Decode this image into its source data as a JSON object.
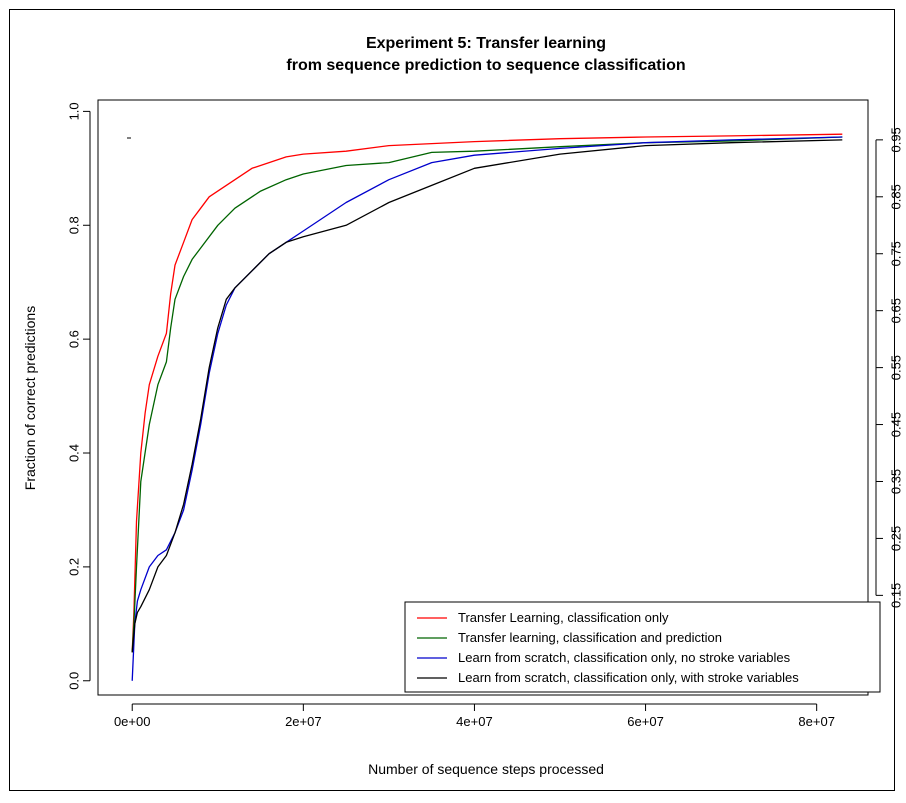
{
  "chart_data": {
    "type": "line",
    "title": "Experiment 5: Transfer learning",
    "subtitle": "from sequence prediction to sequence classification",
    "xlabel": "Number of sequence steps processed",
    "ylabel": "Fraction of correct predictions",
    "xlim": [
      -4000000,
      86000000
    ],
    "ylim": [
      -0.025,
      1.02
    ],
    "x_ticks": [
      0,
      20000000,
      40000000,
      60000000,
      80000000
    ],
    "x_tick_labels": [
      "0e+00",
      "2e+07",
      "4e+07",
      "6e+07",
      "8e+07"
    ],
    "y_ticks": [
      0.0,
      0.2,
      0.4,
      0.6,
      0.8,
      1.0
    ],
    "y_tick_labels": [
      "0.0",
      "0.2",
      "0.4",
      "0.6",
      "0.8",
      "1.0"
    ],
    "right_ticks": [
      0.15,
      0.25,
      0.35,
      0.45,
      0.55,
      0.65,
      0.75,
      0.85,
      0.95
    ],
    "right_tick_labels": [
      "0.15",
      "0.25",
      "0.35",
      "0.45",
      "0.55",
      "0.65",
      "0.75",
      "0.85",
      "0.95"
    ],
    "grid": false,
    "legend_position": "bottom-right",
    "series": [
      {
        "name": "Transfer Learning, classification only",
        "color": "#ff0000",
        "x": [
          0,
          200000,
          500000,
          1000000,
          1500000,
          2000000,
          3000000,
          4000000,
          4500000,
          5000000,
          6000000,
          7000000,
          8000000,
          9000000,
          10000000,
          12000000,
          14000000,
          16000000,
          18000000,
          20000000,
          25000000,
          30000000,
          40000000,
          50000000,
          60000000,
          70000000,
          83000000
        ],
        "y": [
          0.05,
          0.12,
          0.28,
          0.4,
          0.47,
          0.52,
          0.57,
          0.61,
          0.68,
          0.73,
          0.77,
          0.81,
          0.83,
          0.85,
          0.86,
          0.88,
          0.9,
          0.91,
          0.92,
          0.925,
          0.93,
          0.94,
          0.947,
          0.952,
          0.955,
          0.957,
          0.96
        ]
      },
      {
        "name": "Transfer learning, classification and prediction",
        "color": "#006400",
        "x": [
          0,
          200000,
          500000,
          1000000,
          2000000,
          3000000,
          4000000,
          4500000,
          5000000,
          6000000,
          7000000,
          8000000,
          10000000,
          12000000,
          15000000,
          18000000,
          20000000,
          25000000,
          30000000,
          35000000,
          40000000,
          50000000,
          60000000,
          70000000,
          83000000
        ],
        "y": [
          0.05,
          0.1,
          0.2,
          0.35,
          0.45,
          0.52,
          0.56,
          0.62,
          0.67,
          0.71,
          0.74,
          0.76,
          0.8,
          0.83,
          0.86,
          0.88,
          0.89,
          0.905,
          0.91,
          0.928,
          0.93,
          0.938,
          0.945,
          0.948,
          0.955
        ]
      },
      {
        "name": "Learn from scratch, classification only, no stroke variables",
        "color": "#0000cc",
        "x": [
          0,
          300000,
          600000,
          1000000,
          2000000,
          3000000,
          4000000,
          5000000,
          6000000,
          7000000,
          8000000,
          9000000,
          10000000,
          11000000,
          12000000,
          14000000,
          16000000,
          18000000,
          20000000,
          25000000,
          30000000,
          35000000,
          40000000,
          50000000,
          60000000,
          70000000,
          83000000
        ],
        "y": [
          0.0,
          0.1,
          0.14,
          0.16,
          0.2,
          0.22,
          0.23,
          0.26,
          0.3,
          0.37,
          0.45,
          0.54,
          0.61,
          0.66,
          0.69,
          0.72,
          0.75,
          0.77,
          0.79,
          0.84,
          0.88,
          0.91,
          0.923,
          0.935,
          0.945,
          0.95,
          0.955
        ]
      },
      {
        "name": "Learn from scratch, classification only, with stroke variables",
        "color": "#000000",
        "x": [
          0,
          300000,
          600000,
          1000000,
          2000000,
          3000000,
          4000000,
          5000000,
          6000000,
          7000000,
          8000000,
          9000000,
          10000000,
          11000000,
          12000000,
          14000000,
          16000000,
          18000000,
          20000000,
          25000000,
          30000000,
          35000000,
          40000000,
          50000000,
          60000000,
          70000000,
          83000000
        ],
        "y": [
          0.05,
          0.1,
          0.12,
          0.13,
          0.16,
          0.2,
          0.22,
          0.26,
          0.31,
          0.38,
          0.46,
          0.55,
          0.62,
          0.67,
          0.69,
          0.72,
          0.75,
          0.77,
          0.78,
          0.8,
          0.84,
          0.87,
          0.9,
          0.925,
          0.94,
          0.945,
          0.95
        ]
      }
    ]
  }
}
